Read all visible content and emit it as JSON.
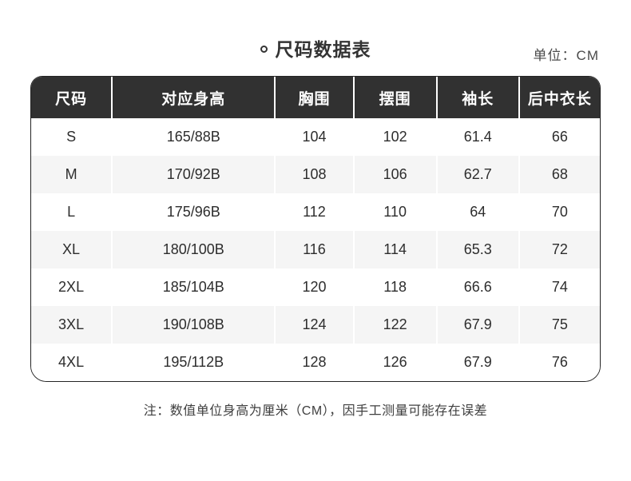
{
  "page": {
    "title": "尺码数据表",
    "unit_label": "单位：CM",
    "note": "注：数值单位身高为厘米（CM），因手工测量可能存在误差"
  },
  "table": {
    "headers": [
      "尺码",
      "对应身高",
      "胸围",
      "摆围",
      "袖长",
      "后中衣长"
    ],
    "rows": [
      [
        "S",
        "165/88B",
        "104",
        "102",
        "61.4",
        "66"
      ],
      [
        "M",
        "170/92B",
        "108",
        "106",
        "62.7",
        "68"
      ],
      [
        "L",
        "175/96B",
        "112",
        "110",
        "64",
        "70"
      ],
      [
        "XL",
        "180/100B",
        "116",
        "114",
        "65.3",
        "72"
      ],
      [
        "2XL",
        "185/104B",
        "120",
        "118",
        "66.6",
        "74"
      ],
      [
        "3XL",
        "190/108B",
        "124",
        "122",
        "67.9",
        "75"
      ],
      [
        "4XL",
        "195/112B",
        "128",
        "126",
        "67.9",
        "76"
      ]
    ]
  },
  "chart_data": {
    "type": "table",
    "title": "尺码数据表",
    "unit": "CM",
    "columns": [
      "尺码",
      "对应身高",
      "胸围",
      "摆围",
      "袖长",
      "后中衣长"
    ],
    "rows": [
      [
        "S",
        "165/88B",
        104,
        102,
        61.4,
        66
      ],
      [
        "M",
        "170/92B",
        108,
        106,
        62.7,
        68
      ],
      [
        "L",
        "175/96B",
        112,
        110,
        64,
        70
      ],
      [
        "XL",
        "180/100B",
        116,
        114,
        65.3,
        72
      ],
      [
        "2XL",
        "185/104B",
        120,
        118,
        66.6,
        74
      ],
      [
        "3XL",
        "190/108B",
        124,
        122,
        67.9,
        75
      ],
      [
        "4XL",
        "195/112B",
        128,
        126,
        67.9,
        76
      ]
    ],
    "note": "注：数值单位身高为厘米（CM），因手工测量可能存在误差"
  },
  "colors": {
    "header_bg": "#313131",
    "header_text": "#ffffff",
    "row_alt_bg": "#f5f5f5",
    "body_text": "#2d2d2d",
    "border": "#242424",
    "title_text": "#333333"
  }
}
